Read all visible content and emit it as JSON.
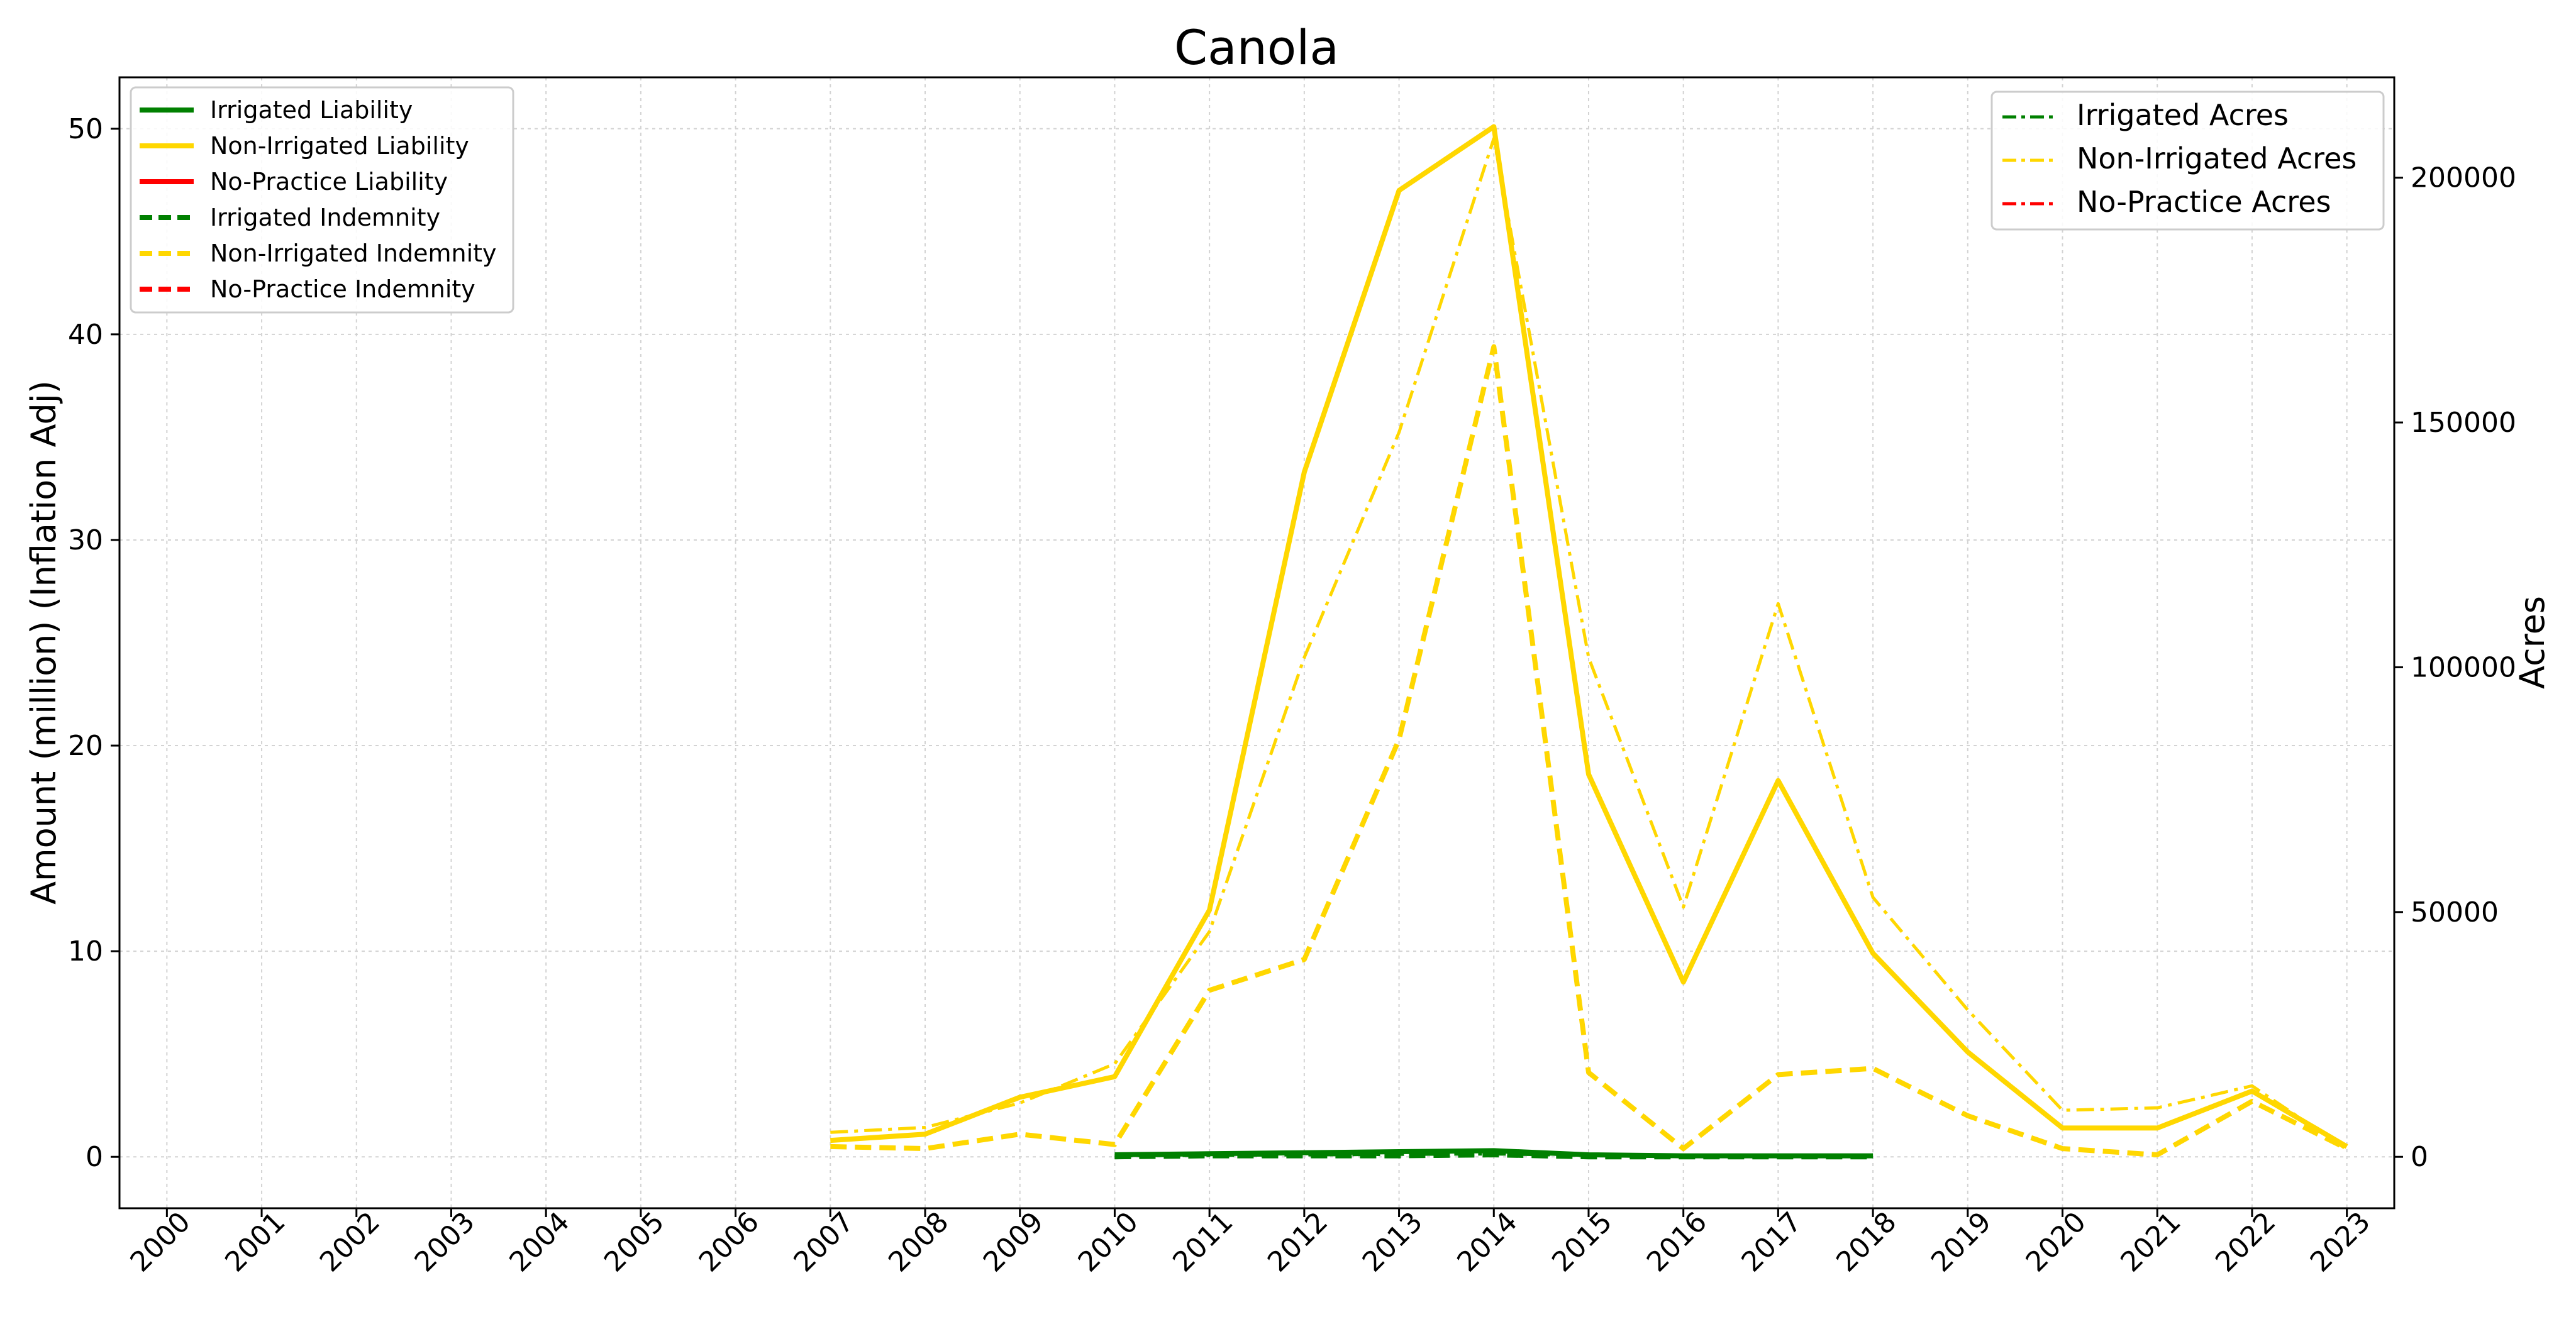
{
  "chart_data": {
    "type": "line",
    "title": "Canola",
    "xlabel": "",
    "ylabel_left": "Amount (million) (Inflation Adj)",
    "ylabel_right": "Acres",
    "x": [
      2000,
      2001,
      2002,
      2003,
      2004,
      2005,
      2006,
      2007,
      2008,
      2009,
      2010,
      2011,
      2012,
      2013,
      2014,
      2015,
      2016,
      2017,
      2018,
      2019,
      2020,
      2021,
      2022,
      2023
    ],
    "x_tick_labels": [
      "2000",
      "2001",
      "2002",
      "2003",
      "2004",
      "2005",
      "2006",
      "2007",
      "2008",
      "2009",
      "2010",
      "2011",
      "2012",
      "2013",
      "2014",
      "2015",
      "2016",
      "2017",
      "2018",
      "2019",
      "2020",
      "2021",
      "2022",
      "2023"
    ],
    "ylim_left": [
      -2.5,
      52.5
    ],
    "yticks_left": [
      0,
      10,
      20,
      30,
      40,
      50
    ],
    "ytick_labels_left": [
      "0",
      "10",
      "20",
      "30",
      "40",
      "50"
    ],
    "ylim_right": [
      -10500,
      220500
    ],
    "yticks_right": [
      0,
      50000,
      100000,
      150000,
      200000
    ],
    "ytick_labels_right": [
      "0",
      "50000",
      "100000",
      "150000",
      "200000"
    ],
    "grid": true,
    "legend_left_placement": "upper-left",
    "legend_right_placement": "upper-right",
    "colors": {
      "irrigated": "#008000",
      "non_irrigated": "#ffd700",
      "no_practice": "#ff0000"
    },
    "series": [
      {
        "name": "Irrigated Liability",
        "axis": "left",
        "color": "#008000",
        "style": "solid",
        "x": [
          2010,
          2011,
          2012,
          2013,
          2014,
          2015,
          2016,
          2017,
          2018
        ],
        "values": [
          0.1,
          0.15,
          0.2,
          0.25,
          0.3,
          0.1,
          0.05,
          0.05,
          0.05
        ]
      },
      {
        "name": "Non-Irrigated Liability",
        "axis": "left",
        "color": "#ffd700",
        "style": "solid",
        "x": [
          2007,
          2008,
          2009,
          2010,
          2011,
          2012,
          2013,
          2014,
          2015,
          2016,
          2017,
          2018,
          2019,
          2020,
          2021,
          2022,
          2023
        ],
        "values": [
          0.8,
          1.1,
          2.9,
          3.9,
          12.0,
          33.3,
          47.0,
          50.1,
          18.6,
          8.5,
          18.3,
          9.9,
          5.1,
          1.4,
          1.4,
          3.2,
          0.5
        ]
      },
      {
        "name": "No-Practice Liability",
        "axis": "left",
        "color": "#ff0000",
        "style": "solid",
        "x": [],
        "values": []
      },
      {
        "name": "Irrigated Indemnity",
        "axis": "left",
        "color": "#008000",
        "style": "dashed",
        "x": [
          2010,
          2011,
          2012,
          2013,
          2014,
          2015,
          2016,
          2017,
          2018
        ],
        "values": [
          0.0,
          0.05,
          0.05,
          0.05,
          0.1,
          0.0,
          0.0,
          0.0,
          0.0
        ]
      },
      {
        "name": "Non-Irrigated Indemnity",
        "axis": "left",
        "color": "#ffd700",
        "style": "dashed",
        "x": [
          2007,
          2008,
          2009,
          2010,
          2011,
          2012,
          2013,
          2014,
          2015,
          2016,
          2017,
          2018,
          2019,
          2020,
          2021,
          2022,
          2023
        ],
        "values": [
          0.5,
          0.4,
          1.1,
          0.6,
          8.1,
          9.6,
          20.3,
          39.4,
          4.1,
          0.4,
          4.0,
          4.3,
          2.0,
          0.4,
          0.1,
          2.7,
          0.4
        ]
      },
      {
        "name": "No-Practice Indemnity",
        "axis": "left",
        "color": "#ff0000",
        "style": "dashed",
        "x": [],
        "values": []
      },
      {
        "name": "Irrigated Acres",
        "axis": "right",
        "color": "#008000",
        "style": "dashdot",
        "x": [
          2010,
          2011,
          2012,
          2013,
          2014,
          2015,
          2016,
          2017,
          2018
        ],
        "values": [
          200,
          300,
          400,
          500,
          600,
          300,
          200,
          200,
          200
        ]
      },
      {
        "name": "Non-Irrigated Acres",
        "axis": "right",
        "color": "#ffd700",
        "style": "dashdot",
        "x": [
          2007,
          2008,
          2009,
          2010,
          2011,
          2012,
          2013,
          2014,
          2015,
          2016,
          2017,
          2018,
          2019,
          2020,
          2021,
          2022,
          2023
        ],
        "values": [
          5000,
          6000,
          11000,
          19000,
          46000,
          102000,
          148000,
          208000,
          102000,
          51000,
          113000,
          53000,
          30000,
          9500,
          10000,
          14500,
          1500
        ]
      },
      {
        "name": "No-Practice Acres",
        "axis": "right",
        "color": "#ff0000",
        "style": "dashdot",
        "x": [],
        "values": []
      }
    ],
    "legend_left": [
      "Irrigated Liability",
      "Non-Irrigated Liability",
      "No-Practice Liability",
      "Irrigated Indemnity",
      "Non-Irrigated Indemnity",
      "No-Practice Indemnity"
    ],
    "legend_right": [
      "Irrigated Acres",
      "Non-Irrigated Acres",
      "No-Practice Acres"
    ]
  }
}
